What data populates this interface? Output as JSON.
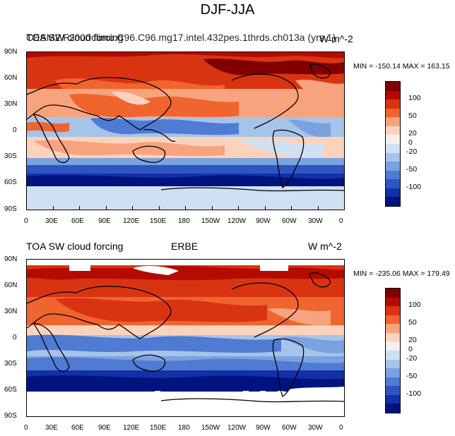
{
  "figure_title": "DJF-JJA",
  "panels": [
    {
      "left_label": "TOA SW cloud forcing",
      "center_label": "",
      "overlap_label": "CESM2.F2000climo.C96.C96.mg17.intel.432pes.1thrds.ch013a (yrs 1)",
      "right_label": "W m^-2",
      "minmax": "MIN = -150.14  MAX = 163.15"
    },
    {
      "left_label": "TOA SW cloud forcing",
      "center_label": "ERBE",
      "right_label": "W m^-2",
      "minmax": "MIN = -235.06  MAX = 179.49"
    }
  ],
  "colorbar_labels": [
    "100",
    "50",
    "20",
    "0",
    "-20",
    "-50",
    "-100"
  ],
  "colorbar_colors": [
    "#800000",
    "#b40b00",
    "#d93412",
    "#f0642e",
    "#f7a37d",
    "#fbd3bc",
    "#f4f0ec",
    "#cfe0f3",
    "#a6c3ea",
    "#7aa2e0",
    "#4f7bd3",
    "#2e55c3",
    "#1230a8",
    "#00137e"
  ],
  "chart_data": [
    {
      "type": "heatmap",
      "title": "DJF-JJA",
      "subtitle": "TOA SW cloud forcing",
      "units": "W m^-2",
      "x_ticks": [
        "0",
        "30E",
        "60E",
        "90E",
        "120E",
        "150E",
        "180",
        "150W",
        "120W",
        "90W",
        "60W",
        "30W",
        "0"
      ],
      "y_ticks": [
        "90N",
        "60N",
        "30N",
        "0",
        "30S",
        "60S",
        "90S"
      ],
      "levels": [
        -100,
        -50,
        -20,
        0,
        20,
        50,
        100
      ],
      "min": -150.14,
      "max": 163.15
    },
    {
      "type": "heatmap",
      "title": "DJF-JJA",
      "subtitle": "ERBE",
      "units": "W m^-2",
      "x_ticks": [
        "0",
        "30E",
        "60E",
        "90E",
        "120E",
        "150E",
        "180",
        "150W",
        "120W",
        "90W",
        "60W",
        "30W",
        "0"
      ],
      "y_ticks": [
        "90N",
        "60N",
        "30N",
        "0",
        "30S",
        "60S",
        "90S"
      ],
      "levels": [
        -100,
        -50,
        -20,
        0,
        20,
        50,
        100
      ],
      "min": -235.06,
      "max": 179.49
    }
  ]
}
